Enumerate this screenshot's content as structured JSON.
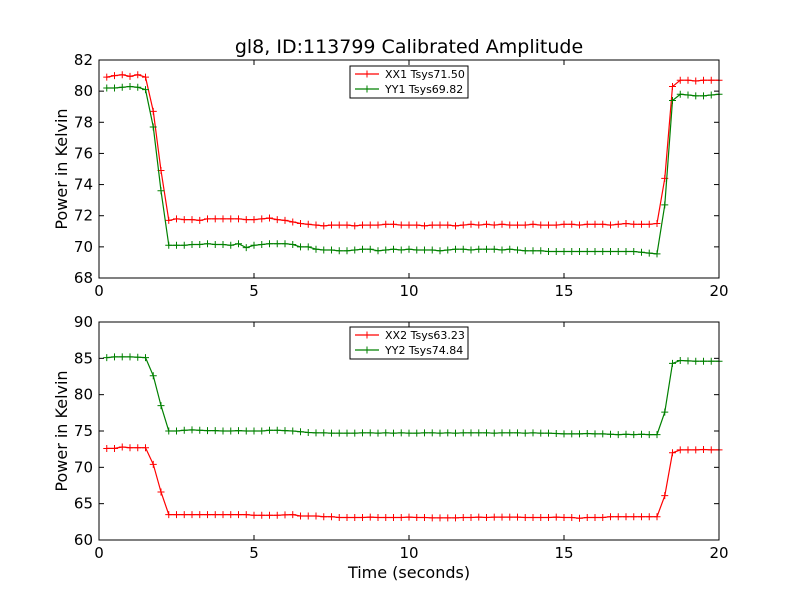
{
  "figure": {
    "title": "gl8, ID:113799 Calibrated Amplitude"
  },
  "colors": {
    "xx": "#ff0000",
    "yy": "#008000"
  },
  "chart_data": [
    {
      "type": "line",
      "title": "gl8, ID:113799 Calibrated Amplitude",
      "xlabel": "",
      "ylabel": "Power in Kelvin",
      "xlim": [
        0,
        20
      ],
      "ylim": [
        68,
        82
      ],
      "xticks": [
        "0",
        "5",
        "10",
        "15",
        "20"
      ],
      "yticks": [
        "68",
        "70",
        "72",
        "74",
        "76",
        "78",
        "80",
        "82"
      ],
      "grid": false,
      "legend_position": "top-center",
      "x": [
        0.25,
        0.5,
        0.75,
        1.0,
        1.25,
        1.5,
        1.75,
        2.0,
        2.25,
        2.5,
        2.75,
        3.0,
        3.25,
        3.5,
        3.75,
        4.0,
        4.25,
        4.5,
        4.75,
        5.0,
        5.25,
        5.5,
        5.75,
        6.0,
        6.25,
        6.5,
        6.75,
        7.0,
        7.25,
        7.5,
        7.75,
        8.0,
        8.25,
        8.5,
        8.75,
        9.0,
        9.25,
        9.5,
        9.75,
        10.0,
        10.25,
        10.5,
        10.75,
        11.0,
        11.25,
        11.5,
        11.75,
        12.0,
        12.25,
        12.5,
        12.75,
        13.0,
        13.25,
        13.5,
        13.75,
        14.0,
        14.25,
        14.5,
        14.75,
        15.0,
        15.25,
        15.5,
        15.75,
        16.0,
        16.25,
        16.5,
        16.75,
        17.0,
        17.25,
        17.5,
        17.75,
        18.0,
        18.25,
        18.5,
        18.75,
        19.0,
        19.25,
        19.5,
        19.75,
        20.0
      ],
      "series": [
        {
          "name": "XX1 Tsys71.50",
          "color": "#ff0000",
          "values": [
            80.9,
            81.0,
            81.05,
            80.95,
            81.05,
            80.9,
            78.7,
            74.9,
            71.7,
            71.8,
            71.75,
            71.75,
            71.7,
            71.8,
            71.8,
            71.8,
            71.8,
            71.8,
            71.75,
            71.75,
            71.8,
            71.85,
            71.75,
            71.7,
            71.6,
            71.5,
            71.45,
            71.4,
            71.35,
            71.4,
            71.4,
            71.4,
            71.35,
            71.4,
            71.4,
            71.4,
            71.45,
            71.45,
            71.4,
            71.4,
            71.4,
            71.35,
            71.4,
            71.4,
            71.4,
            71.35,
            71.4,
            71.45,
            71.4,
            71.45,
            71.4,
            71.45,
            71.4,
            71.4,
            71.4,
            71.45,
            71.4,
            71.4,
            71.4,
            71.45,
            71.45,
            71.4,
            71.45,
            71.45,
            71.45,
            71.4,
            71.45,
            71.5,
            71.45,
            71.45,
            71.45,
            71.5,
            74.4,
            80.3,
            80.7,
            80.7,
            80.65,
            80.7,
            80.7,
            80.7
          ]
        },
        {
          "name": "YY1 Tsys69.82",
          "color": "#008000",
          "values": [
            80.2,
            80.2,
            80.25,
            80.3,
            80.25,
            80.1,
            77.7,
            73.6,
            70.1,
            70.1,
            70.1,
            70.15,
            70.15,
            70.2,
            70.15,
            70.15,
            70.1,
            70.2,
            69.95,
            70.1,
            70.15,
            70.2,
            70.2,
            70.2,
            70.15,
            70.0,
            70.0,
            69.85,
            69.8,
            69.8,
            69.75,
            69.75,
            69.8,
            69.85,
            69.85,
            69.75,
            69.8,
            69.85,
            69.8,
            69.85,
            69.8,
            69.8,
            69.8,
            69.75,
            69.8,
            69.85,
            69.85,
            69.8,
            69.85,
            69.85,
            69.85,
            69.8,
            69.85,
            69.8,
            69.75,
            69.75,
            69.75,
            69.7,
            69.7,
            69.7,
            69.7,
            69.7,
            69.7,
            69.7,
            69.7,
            69.7,
            69.7,
            69.7,
            69.7,
            69.65,
            69.6,
            69.55,
            72.7,
            79.4,
            79.8,
            79.75,
            79.7,
            79.7,
            79.75,
            79.8
          ]
        }
      ]
    },
    {
      "type": "line",
      "title": "",
      "xlabel": "Time (seconds)",
      "ylabel": "Power in Kelvin",
      "xlim": [
        0,
        20
      ],
      "ylim": [
        60,
        90
      ],
      "xticks": [
        "0",
        "5",
        "10",
        "15",
        "20"
      ],
      "yticks": [
        "60",
        "65",
        "70",
        "75",
        "80",
        "85",
        "90"
      ],
      "grid": false,
      "legend_position": "top-center",
      "x": [
        0.25,
        0.5,
        0.75,
        1.0,
        1.25,
        1.5,
        1.75,
        2.0,
        2.25,
        2.5,
        2.75,
        3.0,
        3.25,
        3.5,
        3.75,
        4.0,
        4.25,
        4.5,
        4.75,
        5.0,
        5.25,
        5.5,
        5.75,
        6.0,
        6.25,
        6.5,
        6.75,
        7.0,
        7.25,
        7.5,
        7.75,
        8.0,
        8.25,
        8.5,
        8.75,
        9.0,
        9.25,
        9.5,
        9.75,
        10.0,
        10.25,
        10.5,
        10.75,
        11.0,
        11.25,
        11.5,
        11.75,
        12.0,
        12.25,
        12.5,
        12.75,
        13.0,
        13.25,
        13.5,
        13.75,
        14.0,
        14.25,
        14.5,
        14.75,
        15.0,
        15.25,
        15.5,
        15.75,
        16.0,
        16.25,
        16.5,
        16.75,
        17.0,
        17.25,
        17.5,
        17.75,
        18.0,
        18.25,
        18.5,
        18.75,
        19.0,
        19.25,
        19.5,
        19.75,
        20.0
      ],
      "series": [
        {
          "name": "XX2 Tsys63.23",
          "color": "#ff0000",
          "values": [
            72.6,
            72.6,
            72.8,
            72.7,
            72.7,
            72.7,
            70.4,
            66.6,
            63.5,
            63.5,
            63.5,
            63.5,
            63.5,
            63.5,
            63.5,
            63.5,
            63.5,
            63.5,
            63.5,
            63.4,
            63.4,
            63.4,
            63.4,
            63.45,
            63.5,
            63.3,
            63.3,
            63.3,
            63.2,
            63.2,
            63.1,
            63.1,
            63.1,
            63.1,
            63.15,
            63.1,
            63.1,
            63.1,
            63.1,
            63.15,
            63.1,
            63.1,
            63.05,
            63.05,
            63.05,
            63.05,
            63.1,
            63.1,
            63.15,
            63.1,
            63.15,
            63.15,
            63.15,
            63.15,
            63.1,
            63.1,
            63.1,
            63.1,
            63.15,
            63.1,
            63.1,
            63.0,
            63.1,
            63.1,
            63.1,
            63.2,
            63.2,
            63.2,
            63.2,
            63.2,
            63.2,
            63.2,
            66.1,
            72.0,
            72.4,
            72.4,
            72.4,
            72.45,
            72.4,
            72.4
          ]
        },
        {
          "name": "YY2 Tsys74.84",
          "color": "#008000",
          "values": [
            85.1,
            85.2,
            85.2,
            85.2,
            85.15,
            85.1,
            82.6,
            78.5,
            75.0,
            75.0,
            75.1,
            75.15,
            75.1,
            75.05,
            75.05,
            75.0,
            75.0,
            75.05,
            75.0,
            75.0,
            75.0,
            75.1,
            75.1,
            75.05,
            75.0,
            74.9,
            74.8,
            74.75,
            74.75,
            74.7,
            74.7,
            74.7,
            74.7,
            74.75,
            74.75,
            74.7,
            74.75,
            74.7,
            74.75,
            74.7,
            74.7,
            74.75,
            74.75,
            74.7,
            74.75,
            74.7,
            74.75,
            74.75,
            74.75,
            74.75,
            74.7,
            74.75,
            74.75,
            74.75,
            74.7,
            74.75,
            74.7,
            74.7,
            74.65,
            74.6,
            74.6,
            74.6,
            74.65,
            74.6,
            74.6,
            74.55,
            74.5,
            74.55,
            74.5,
            74.55,
            74.5,
            74.5,
            77.6,
            84.3,
            84.7,
            84.65,
            84.6,
            84.6,
            84.6,
            84.6
          ]
        }
      ]
    }
  ]
}
